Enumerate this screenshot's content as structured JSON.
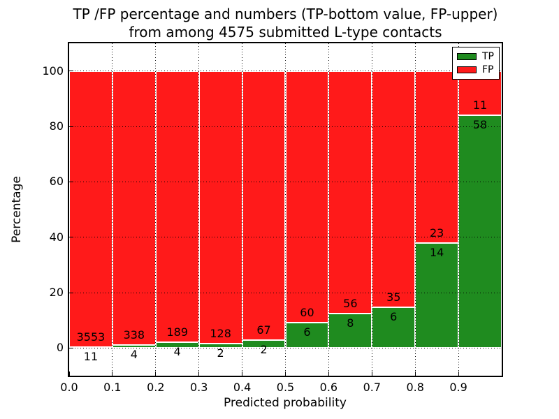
{
  "figure": {
    "title_line1": "TP /FP percentage and numbers (TP-bottom value, FP-upper)",
    "title_line2": "from among 4575 submitted L-type contacts"
  },
  "chart_data": {
    "type": "bar",
    "stacked": true,
    "normalized": "percent",
    "title": "TP /FP percentage and numbers (TP-bottom value, FP-upper)\nfrom among 4575 submitted L-type contacts",
    "xlabel": "Predicted probability",
    "ylabel": "Percentage",
    "total_submitted_contacts": 4575,
    "bin_starts": [
      0.0,
      0.1,
      0.2,
      0.3,
      0.4,
      0.5,
      0.6,
      0.7,
      0.8,
      0.9
    ],
    "bin_width": 0.1,
    "series": [
      {
        "name": "TP",
        "color": "#1f8b1f",
        "counts": [
          11,
          4,
          4,
          2,
          2,
          6,
          8,
          6,
          14,
          58
        ]
      },
      {
        "name": "FP",
        "color": "#ff1a1a",
        "counts": [
          3553,
          338,
          189,
          128,
          67,
          60,
          56,
          35,
          23,
          11
        ]
      }
    ],
    "bar_edge_color": "#ffffff",
    "x_ticks": [
      0.0,
      0.1,
      0.2,
      0.3,
      0.4,
      0.5,
      0.6,
      0.7,
      0.8,
      0.9
    ],
    "x_tick_labels": [
      "0.0",
      "0.1",
      "0.2",
      "0.3",
      "0.4",
      "0.5",
      "0.6",
      "0.7",
      "0.8",
      "0.9"
    ],
    "y_ticks": [
      0,
      20,
      40,
      60,
      80,
      100
    ],
    "y_tick_labels": [
      "0",
      "20",
      "40",
      "60",
      "80",
      "100"
    ],
    "xlim": [
      0.0,
      1.0
    ],
    "ylim": [
      -10,
      110
    ],
    "grid": "dotted",
    "grid_color": "#000000",
    "legend": {
      "position": "upper right",
      "entries": [
        "TP",
        "FP"
      ]
    }
  }
}
